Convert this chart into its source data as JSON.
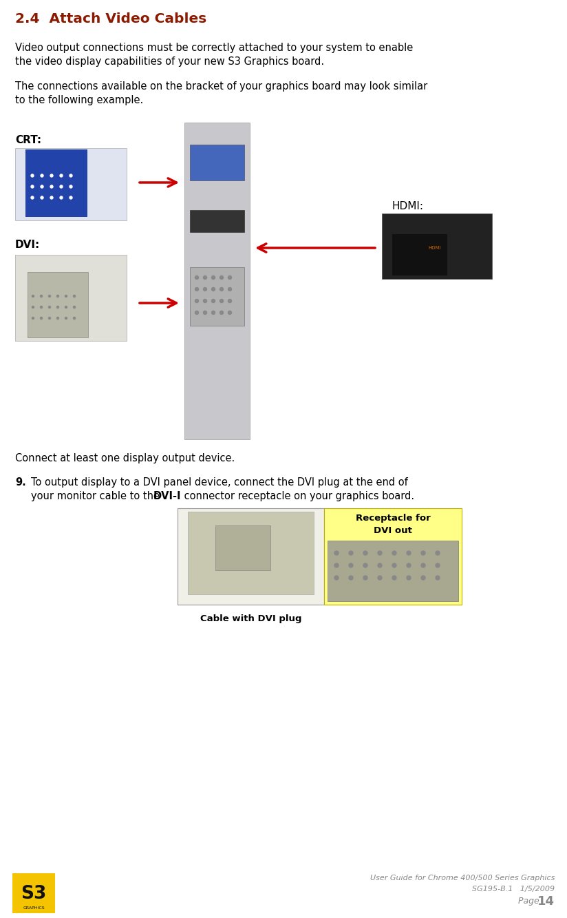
{
  "title": "2.4  Attach Video Cables",
  "title_color": "#8B1A00",
  "title_fontsize": 14.5,
  "body_text_1a": "Video output connections must be correctly attached to your system to enable",
  "body_text_1b": "the video display capabilities of your new S3 Graphics board.",
  "body_text_2a": "The connections available on the bracket of your graphics board may look similar",
  "body_text_2b": "to the following example.",
  "label_crt": "CRT:",
  "label_dvi": "DVI:",
  "label_hdmi": "HDMI:",
  "connect_text": "Connect at least one display output device.",
  "step9_num": "9.",
  "step9_line1": "To output display to a DVI panel device, connect the DVI plug at the end of",
  "step9_line2a": "your monitor cable to the ",
  "step9_bold": "DVI-I",
  "step9_line2b": " connector receptacle on your graphics board.",
  "caption_left": "Cable with DVI plug",
  "caption_right_line1": "Receptacle for",
  "caption_right_line2": "DVI out",
  "footer_line1": "User Guide for Chrome 400/500 Series Graphics",
  "footer_line2": "SG195-B.1   1/5/2009",
  "footer_page_label": "Page ",
  "footer_page_num": "14",
  "bg_color": "#ffffff",
  "text_color": "#000000",
  "footer_color": "#888888",
  "arrow_color": "#cc0000",
  "caption_right_bg": "#ffff88",
  "logo_bg": "#f5c400",
  "logo_text": "S3",
  "logo_sub": "GRAPHICS",
  "body_fontsize": 10.5,
  "label_fontsize": 11,
  "step_fontsize": 10.5,
  "caption_fontsize": 9.5,
  "footer_fontsize": 8
}
